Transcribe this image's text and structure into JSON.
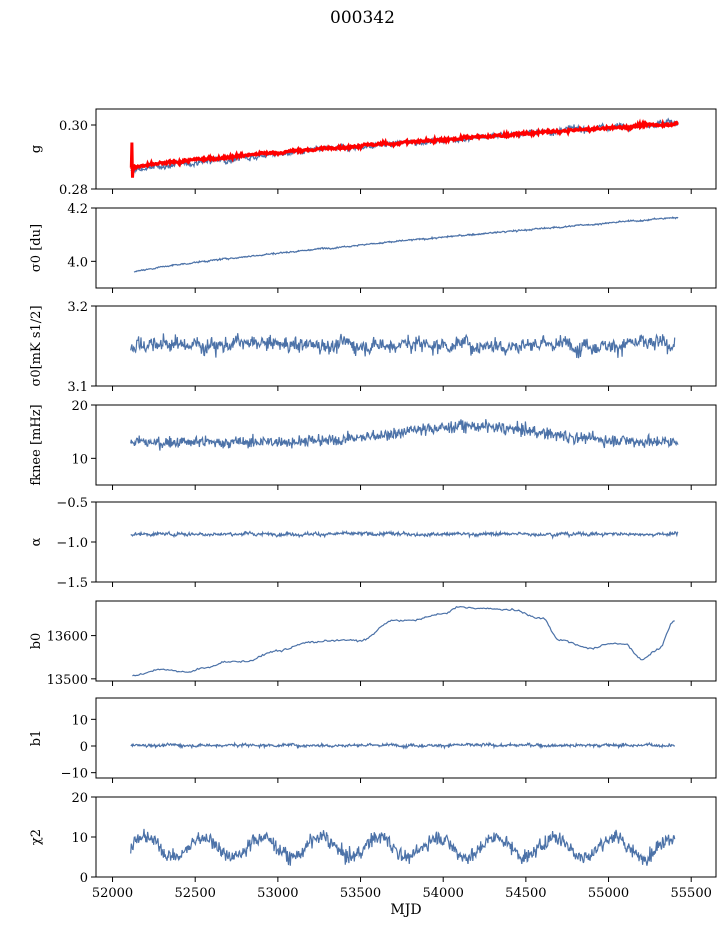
{
  "figure": {
    "title": "000342"
  },
  "colors": {
    "series": "#4c72a8",
    "overlay": "#ff0000",
    "axis": "#000000"
  },
  "chart_data": [
    {
      "type": "line",
      "ylabel": "g",
      "ylim": [
        0.28,
        0.305
      ],
      "yticks": [
        0.28,
        0.3
      ],
      "ytick_labels": [
        "0.28",
        "0.30"
      ],
      "series": [
        {
          "values_shape": "rising",
          "x_range": [
            52110,
            55420
          ],
          "y_start": 0.2855,
          "y_end": 0.301,
          "noise": 0.0012,
          "color": "#4c72a8"
        },
        {
          "values_shape": "rising_band",
          "x_range": [
            52110,
            55420
          ],
          "y_start": 0.2865,
          "y_end": 0.3005,
          "noise": 0.0006,
          "color": "#ff0000"
        }
      ]
    },
    {
      "type": "line",
      "ylabel": "σ0 [du]",
      "ylim": [
        3.9,
        4.2
      ],
      "yticks": [
        4.0,
        4.2
      ],
      "ytick_labels": [
        "4.0",
        "4.2"
      ],
      "series": [
        {
          "values_shape": "rising",
          "x_range": [
            52130,
            55420
          ],
          "y_start": 3.96,
          "y_end": 4.165,
          "noise": 0.004,
          "color": "#4c72a8"
        }
      ]
    },
    {
      "type": "line",
      "ylabel": "σ0[mK s1/2]",
      "ylim": [
        3.1,
        3.2
      ],
      "yticks": [
        3.1,
        3.2
      ],
      "ytick_labels": [
        "3.1",
        "3.2"
      ],
      "series": [
        {
          "values_shape": "noisy_flat",
          "x_range": [
            52110,
            55400
          ],
          "y_mean": 3.152,
          "noise": 0.012,
          "color": "#4c72a8"
        }
      ]
    },
    {
      "type": "line",
      "ylabel": "fknee [mHz]",
      "ylim": [
        5,
        20
      ],
      "yticks": [
        10,
        20
      ],
      "ytick_labels": [
        "10",
        "20"
      ],
      "series": [
        {
          "values_shape": "hump",
          "x_range": [
            52110,
            55420
          ],
          "y_mean": 13,
          "y_peak": 16,
          "noise": 1.1,
          "color": "#4c72a8"
        }
      ]
    },
    {
      "type": "line",
      "ylabel": "α",
      "ylim": [
        -1.5,
        -0.5
      ],
      "yticks": [
        -1.5,
        -1.0,
        -0.5
      ],
      "ytick_labels": [
        "−1.5",
        "−1.0",
        "−0.5"
      ],
      "series": [
        {
          "values_shape": "noisy_flat",
          "x_range": [
            52110,
            55420
          ],
          "y_mean": -0.9,
          "noise": 0.025,
          "color": "#4c72a8"
        }
      ]
    },
    {
      "type": "line",
      "ylabel": "b0",
      "ylim": [
        13495,
        13680
      ],
      "yticks": [
        13500,
        13600
      ],
      "ytick_labels": [
        "13500",
        "13600"
      ],
      "series": [
        {
          "values_shape": "smooth_path",
          "x": [
            52120,
            52300,
            52450,
            52550,
            52700,
            52800,
            53000,
            53200,
            53400,
            53500,
            53700,
            53800,
            54000,
            54100,
            54200,
            54400,
            54600,
            54700,
            54900,
            55000,
            55100,
            55200,
            55300,
            55400
          ],
          "y": [
            13508,
            13522,
            13515,
            13525,
            13540,
            13540,
            13565,
            13585,
            13590,
            13588,
            13635,
            13635,
            13650,
            13667,
            13663,
            13660,
            13640,
            13590,
            13570,
            13582,
            13580,
            13545,
            13568,
            13635
          ],
          "noise": 2,
          "color": "#4c72a8"
        }
      ]
    },
    {
      "type": "line",
      "ylabel": "b1",
      "ylim": [
        -12,
        18
      ],
      "yticks": [
        -10,
        0,
        10
      ],
      "ytick_labels": [
        "−10",
        "0",
        "10"
      ],
      "series": [
        {
          "values_shape": "noisy_flat",
          "x_range": [
            52110,
            55400
          ],
          "y_mean": 0.3,
          "noise": 0.7,
          "color": "#4c72a8"
        }
      ]
    },
    {
      "type": "line",
      "ylabel": "χ2",
      "ylim": [
        0,
        20
      ],
      "yticks": [
        0,
        10,
        20
      ],
      "ytick_labels": [
        "0",
        "10",
        "20"
      ],
      "xlabel": "MJD",
      "xticks": [
        52000,
        52500,
        53000,
        53500,
        54000,
        54500,
        55000,
        55500
      ],
      "xtick_labels": [
        "52000",
        "52500",
        "53000",
        "53500",
        "54000",
        "54500",
        "55000",
        "55500"
      ],
      "series": [
        {
          "values_shape": "periodic",
          "x_range": [
            52110,
            55400
          ],
          "y_mean": 7.5,
          "amp": 2.5,
          "noise": 1.7,
          "color": "#4c72a8"
        }
      ]
    }
  ],
  "xlim": [
    51900,
    55650
  ]
}
